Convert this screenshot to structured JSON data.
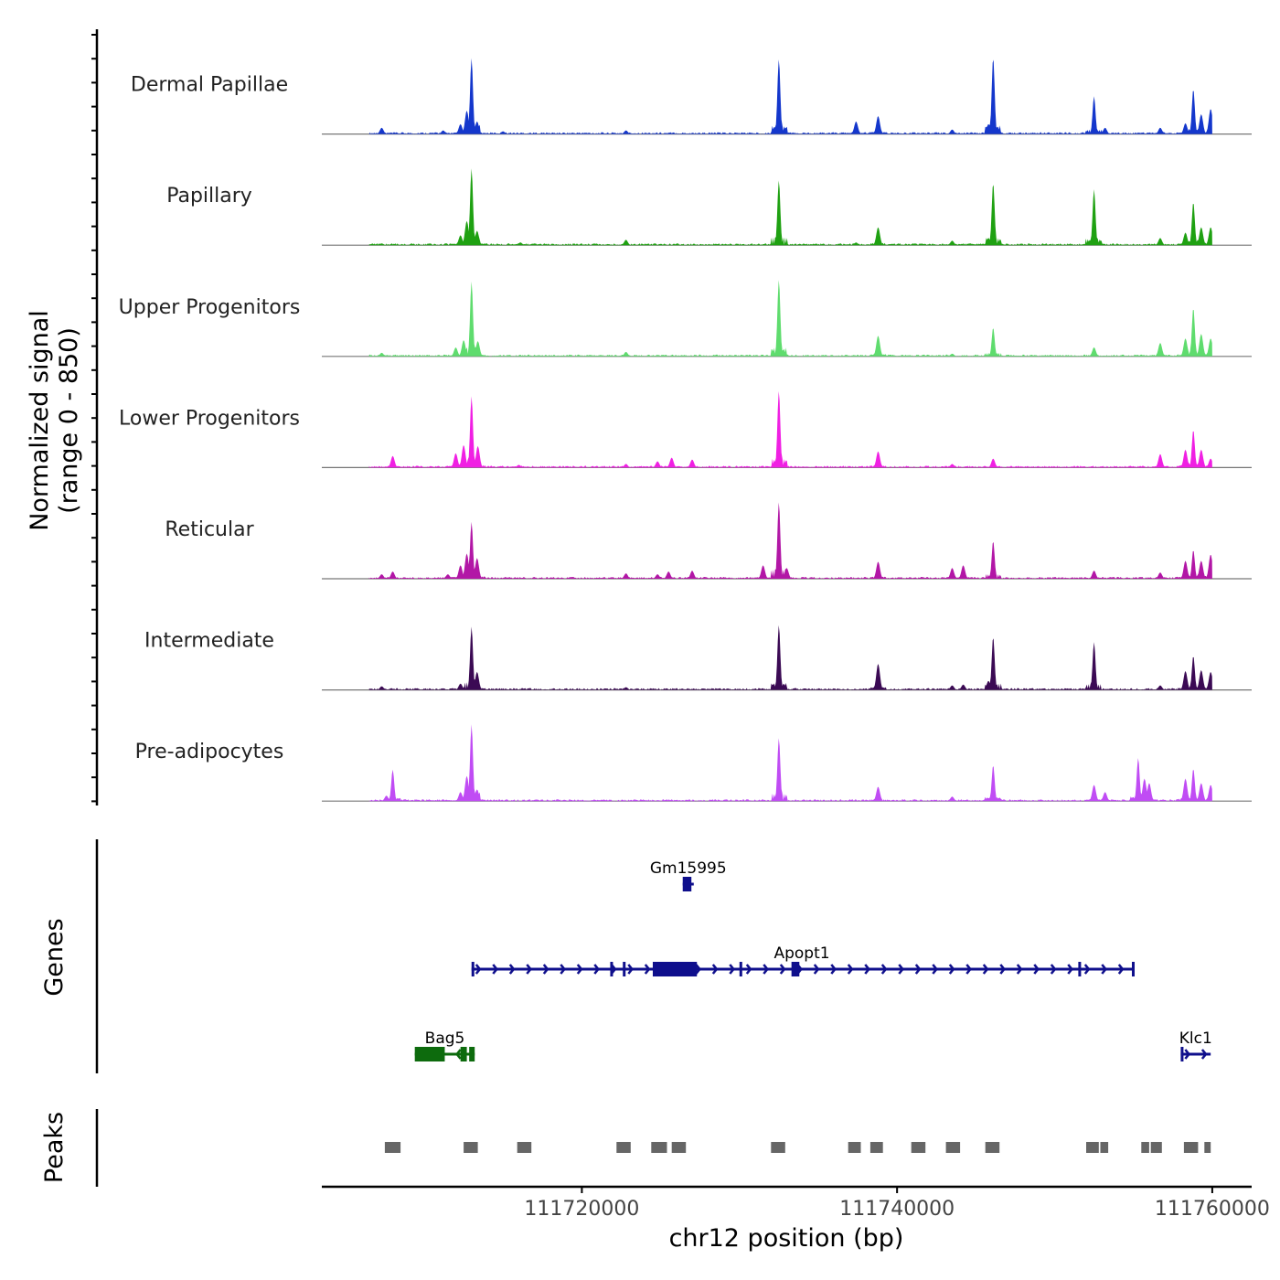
{
  "chart_data": {
    "type": "area",
    "title": "",
    "ylabel_line1": "Normalized signal",
    "ylabel_line2": "(range 0 - 850)",
    "y_range": [
      0,
      850
    ],
    "xlabel": "chr12 position (bp)",
    "x_range": [
      111703500,
      111762500
    ],
    "x_ticks": [
      111720000,
      111740000,
      111760000
    ],
    "x_tick_labels": [
      "111720000",
      "111740000",
      "111760000"
    ],
    "track_start": 111706500,
    "track_end": 111760000,
    "tracks": [
      {
        "name": "Dermal Papillae",
        "color": "#1437cc",
        "peaks": [
          {
            "x": 111707300,
            "y": 70
          },
          {
            "x": 111711200,
            "y": 40
          },
          {
            "x": 111712300,
            "y": 110
          },
          {
            "x": 111712700,
            "y": 260
          },
          {
            "x": 111713000,
            "y": 840
          },
          {
            "x": 111713350,
            "y": 140
          },
          {
            "x": 111715000,
            "y": 30
          },
          {
            "x": 111722800,
            "y": 40
          },
          {
            "x": 111732500,
            "y": 830
          },
          {
            "x": 111737400,
            "y": 140
          },
          {
            "x": 111738800,
            "y": 200
          },
          {
            "x": 111743500,
            "y": 50
          },
          {
            "x": 111745800,
            "y": 110
          },
          {
            "x": 111746100,
            "y": 850
          },
          {
            "x": 111752500,
            "y": 420
          },
          {
            "x": 111753200,
            "y": 70
          },
          {
            "x": 111756700,
            "y": 70
          },
          {
            "x": 111758300,
            "y": 120
          },
          {
            "x": 111758800,
            "y": 500
          },
          {
            "x": 111759300,
            "y": 220
          },
          {
            "x": 111759900,
            "y": 280
          }
        ]
      },
      {
        "name": "Papillary",
        "color": "#1fa112",
        "peaks": [
          {
            "x": 111707300,
            "y": 20
          },
          {
            "x": 111712300,
            "y": 110
          },
          {
            "x": 111712700,
            "y": 270
          },
          {
            "x": 111713000,
            "y": 850
          },
          {
            "x": 111713350,
            "y": 160
          },
          {
            "x": 111716100,
            "y": 30
          },
          {
            "x": 111722800,
            "y": 60
          },
          {
            "x": 111732500,
            "y": 720
          },
          {
            "x": 111737400,
            "y": 30
          },
          {
            "x": 111738800,
            "y": 200
          },
          {
            "x": 111743500,
            "y": 50
          },
          {
            "x": 111745800,
            "y": 80
          },
          {
            "x": 111746100,
            "y": 690
          },
          {
            "x": 111752500,
            "y": 620
          },
          {
            "x": 111756700,
            "y": 80
          },
          {
            "x": 111758300,
            "y": 140
          },
          {
            "x": 111758800,
            "y": 480
          },
          {
            "x": 111759300,
            "y": 200
          },
          {
            "x": 111759900,
            "y": 200
          }
        ]
      },
      {
        "name": "Upper Progenitors",
        "color": "#5fdc6e",
        "peaks": [
          {
            "x": 111707300,
            "y": 40
          },
          {
            "x": 111712000,
            "y": 100
          },
          {
            "x": 111712500,
            "y": 180
          },
          {
            "x": 111713000,
            "y": 830
          },
          {
            "x": 111713400,
            "y": 170
          },
          {
            "x": 111722800,
            "y": 50
          },
          {
            "x": 111732500,
            "y": 850
          },
          {
            "x": 111738800,
            "y": 230
          },
          {
            "x": 111743500,
            "y": 30
          },
          {
            "x": 111746100,
            "y": 320
          },
          {
            "x": 111752500,
            "y": 100
          },
          {
            "x": 111756700,
            "y": 150
          },
          {
            "x": 111758300,
            "y": 200
          },
          {
            "x": 111758800,
            "y": 540
          },
          {
            "x": 111759300,
            "y": 250
          },
          {
            "x": 111759900,
            "y": 200
          }
        ]
      },
      {
        "name": "Lower Progenitors",
        "color": "#f01fe3",
        "peaks": [
          {
            "x": 111708000,
            "y": 130
          },
          {
            "x": 111712000,
            "y": 160
          },
          {
            "x": 111712500,
            "y": 250
          },
          {
            "x": 111713000,
            "y": 790
          },
          {
            "x": 111713400,
            "y": 240
          },
          {
            "x": 111716000,
            "y": 30
          },
          {
            "x": 111722800,
            "y": 40
          },
          {
            "x": 111724800,
            "y": 70
          },
          {
            "x": 111725700,
            "y": 110
          },
          {
            "x": 111727000,
            "y": 90
          },
          {
            "x": 111732500,
            "y": 850
          },
          {
            "x": 111738800,
            "y": 180
          },
          {
            "x": 111743500,
            "y": 40
          },
          {
            "x": 111746100,
            "y": 100
          },
          {
            "x": 111756700,
            "y": 150
          },
          {
            "x": 111758300,
            "y": 200
          },
          {
            "x": 111758800,
            "y": 420
          },
          {
            "x": 111759300,
            "y": 200
          },
          {
            "x": 111759900,
            "y": 100
          }
        ]
      },
      {
        "name": "Reticular",
        "color": "#b217a6",
        "peaks": [
          {
            "x": 111707300,
            "y": 50
          },
          {
            "x": 111708000,
            "y": 80
          },
          {
            "x": 111711500,
            "y": 50
          },
          {
            "x": 111712300,
            "y": 150
          },
          {
            "x": 111712700,
            "y": 280
          },
          {
            "x": 111713000,
            "y": 630
          },
          {
            "x": 111713350,
            "y": 230
          },
          {
            "x": 111722800,
            "y": 60
          },
          {
            "x": 111724800,
            "y": 50
          },
          {
            "x": 111725500,
            "y": 80
          },
          {
            "x": 111727000,
            "y": 90
          },
          {
            "x": 111731500,
            "y": 150
          },
          {
            "x": 111732500,
            "y": 850
          },
          {
            "x": 111733000,
            "y": 120
          },
          {
            "x": 111738800,
            "y": 190
          },
          {
            "x": 111743500,
            "y": 120
          },
          {
            "x": 111744200,
            "y": 150
          },
          {
            "x": 111746100,
            "y": 420
          },
          {
            "x": 111752500,
            "y": 90
          },
          {
            "x": 111756700,
            "y": 70
          },
          {
            "x": 111758300,
            "y": 200
          },
          {
            "x": 111758800,
            "y": 320
          },
          {
            "x": 111759300,
            "y": 200
          },
          {
            "x": 111759900,
            "y": 270
          }
        ]
      },
      {
        "name": "Intermediate",
        "color": "#3b0a54",
        "peaks": [
          {
            "x": 111707300,
            "y": 40
          },
          {
            "x": 111712300,
            "y": 70
          },
          {
            "x": 111713000,
            "y": 700
          },
          {
            "x": 111713350,
            "y": 200
          },
          {
            "x": 111722800,
            "y": 30
          },
          {
            "x": 111732500,
            "y": 720
          },
          {
            "x": 111738800,
            "y": 290
          },
          {
            "x": 111743500,
            "y": 50
          },
          {
            "x": 111744200,
            "y": 60
          },
          {
            "x": 111745800,
            "y": 100
          },
          {
            "x": 111746100,
            "y": 590
          },
          {
            "x": 111752500,
            "y": 530
          },
          {
            "x": 111756700,
            "y": 50
          },
          {
            "x": 111758300,
            "y": 210
          },
          {
            "x": 111758800,
            "y": 380
          },
          {
            "x": 111759300,
            "y": 220
          },
          {
            "x": 111759900,
            "y": 200
          }
        ]
      },
      {
        "name": "Pre-adipocytes",
        "color": "#c04cf4",
        "peaks": [
          {
            "x": 111707600,
            "y": 60
          },
          {
            "x": 111708000,
            "y": 350
          },
          {
            "x": 111712300,
            "y": 100
          },
          {
            "x": 111712700,
            "y": 280
          },
          {
            "x": 111713000,
            "y": 850
          },
          {
            "x": 111713350,
            "y": 130
          },
          {
            "x": 111732500,
            "y": 700
          },
          {
            "x": 111738800,
            "y": 160
          },
          {
            "x": 111743500,
            "y": 50
          },
          {
            "x": 111746100,
            "y": 400
          },
          {
            "x": 111752500,
            "y": 180
          },
          {
            "x": 111753200,
            "y": 100
          },
          {
            "x": 111755300,
            "y": 480
          },
          {
            "x": 111755700,
            "y": 250
          },
          {
            "x": 111756000,
            "y": 200
          },
          {
            "x": 111758300,
            "y": 250
          },
          {
            "x": 111758800,
            "y": 360
          },
          {
            "x": 111759300,
            "y": 200
          },
          {
            "x": 111759900,
            "y": 180
          }
        ]
      }
    ],
    "genes_label": "Genes",
    "genes": [
      {
        "name": "Gm15995",
        "color": "#0f0f8c",
        "strand": "+",
        "row": 0,
        "start": 111726400,
        "end": 111727100,
        "exons": [
          [
            111726400,
            111726950
          ]
        ]
      },
      {
        "name": "Apopt1",
        "color": "#0f0f8c",
        "strand": "+",
        "row": 1,
        "start": 111713000,
        "end": 111755000,
        "exons": [
          [
            111713000,
            111713150
          ],
          [
            111721800,
            111721900
          ],
          [
            111722600,
            111722720
          ],
          [
            111724500,
            111727300
          ],
          [
            111730000,
            111730080
          ],
          [
            111733300,
            111733800
          ],
          [
            111751500,
            111751580
          ],
          [
            111754900,
            111755000
          ]
        ]
      },
      {
        "name": "Bag5",
        "color": "#0d6b0d",
        "strand": "-",
        "row": 2,
        "start": 111709400,
        "end": 111713200,
        "exons": [
          [
            111709400,
            111711300
          ],
          [
            111712300,
            111712700
          ],
          [
            111712850,
            111713200
          ]
        ]
      },
      {
        "name": "Klc1",
        "color": "#0f0f8c",
        "strand": "+",
        "row": 2,
        "start": 111758000,
        "end": 111759900,
        "exons": [
          [
            111758000,
            111758150
          ]
        ]
      }
    ],
    "peaks_label": "Peaks",
    "peak_color": "#666666",
    "called_peaks": [
      [
        111707500,
        111708500
      ],
      [
        111712500,
        111713400
      ],
      [
        111715900,
        111716800
      ],
      [
        111722200,
        111723100
      ],
      [
        111724400,
        111725400
      ],
      [
        111725700,
        111726600
      ],
      [
        111732000,
        111732900
      ],
      [
        111736900,
        111737700
      ],
      [
        111738300,
        111739100
      ],
      [
        111740900,
        111741800
      ],
      [
        111743100,
        111744000
      ],
      [
        111745600,
        111746500
      ],
      [
        111752000,
        111752800
      ],
      [
        111752900,
        111753400
      ],
      [
        111755500,
        111756000
      ],
      [
        111756100,
        111756800
      ],
      [
        111758200,
        111759100
      ],
      [
        111759500,
        111759900
      ]
    ]
  }
}
